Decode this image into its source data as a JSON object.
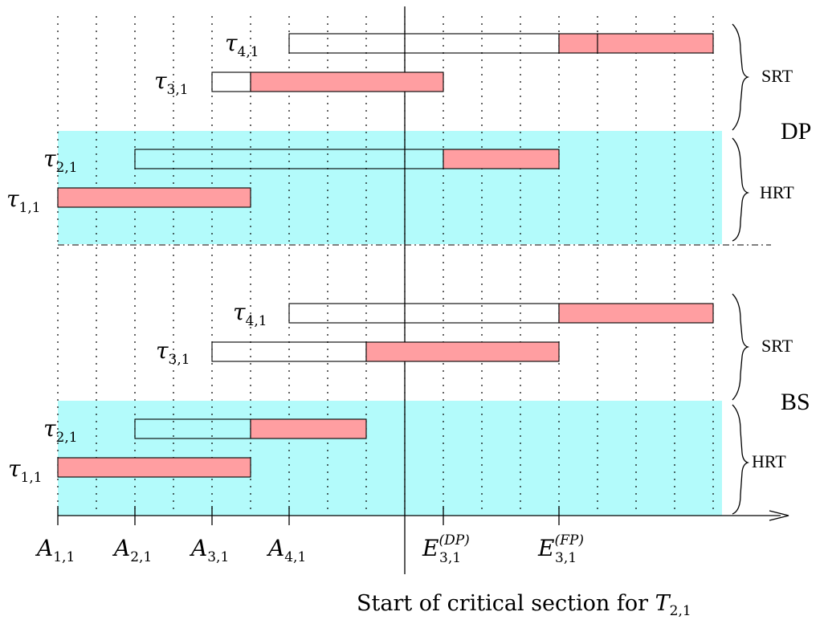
{
  "colors": {
    "hrt_band": "#b3fbfb",
    "exec_fill": "#ff9ea1",
    "line": "#000000"
  },
  "sections": {
    "dp": {
      "label": "DP",
      "srt": "SRT",
      "hrt": "HRT"
    },
    "bs": {
      "label": "BS",
      "srt": "SRT",
      "hrt": "HRT"
    }
  },
  "tasks": {
    "dp": [
      {
        "name": "τ",
        "sub": "4,1",
        "wait": [
          6,
          13
        ],
        "exec": [
          [
            13,
            14
          ],
          [
            14,
            17
          ]
        ]
      },
      {
        "name": "τ",
        "sub": "3,1",
        "wait": [
          4,
          5
        ],
        "exec": [
          [
            5,
            10
          ]
        ]
      },
      {
        "name": "τ",
        "sub": "2,1",
        "wait": [
          2,
          10
        ],
        "exec": [
          [
            10,
            13
          ]
        ]
      },
      {
        "name": "τ",
        "sub": "1,1",
        "wait": null,
        "exec": [
          [
            0,
            5
          ]
        ]
      }
    ],
    "bs": [
      {
        "name": "τ",
        "sub": "4,1",
        "wait": [
          6,
          13
        ],
        "exec": [
          [
            13,
            17
          ]
        ]
      },
      {
        "name": "τ",
        "sub": "3,1",
        "wait": [
          4,
          8
        ],
        "exec": [
          [
            8,
            13
          ]
        ]
      },
      {
        "name": "τ",
        "sub": "2,1",
        "wait": [
          2,
          5
        ],
        "exec": [
          [
            5,
            8
          ]
        ]
      },
      {
        "name": "τ",
        "sub": "1,1",
        "wait": null,
        "exec": [
          [
            0,
            5
          ]
        ]
      }
    ]
  },
  "axis": {
    "ticks": [
      {
        "t": 0,
        "base": "A",
        "sub": "1,1",
        "sup": ""
      },
      {
        "t": 2,
        "base": "A",
        "sub": "2,1",
        "sup": ""
      },
      {
        "t": 4,
        "base": "A",
        "sub": "3,1",
        "sup": ""
      },
      {
        "t": 6,
        "base": "A",
        "sub": "4,1",
        "sup": ""
      },
      {
        "t": 10,
        "base": "E",
        "sub": "3,1",
        "sup": "(DP)"
      },
      {
        "t": 13,
        "base": "E",
        "sub": "3,1",
        "sup": "(FP)"
      }
    ],
    "critical_section_at": 9,
    "grid_count": 18
  },
  "caption": {
    "text": "Start of critical section for ",
    "base": "T",
    "sub": "2,1"
  }
}
